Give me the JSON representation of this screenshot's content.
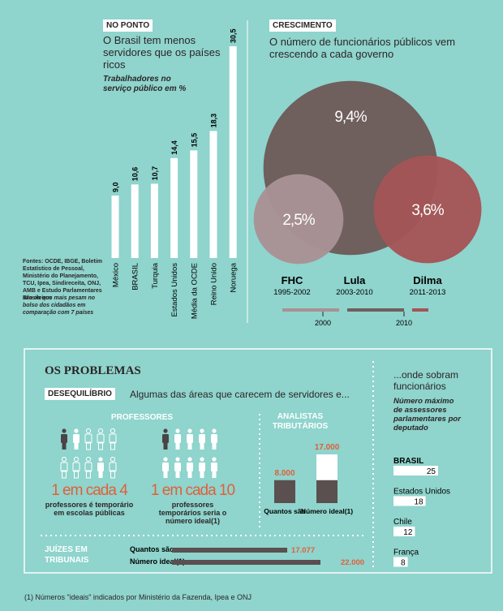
{
  "chart_data": [
    {
      "type": "bar",
      "title": "NO PONTO",
      "subtitle": "O Brasil tem menos servidores que os países ricos",
      "y_label": "Trabalhadores no serviço público em %",
      "categories": [
        "México",
        "BRASIL",
        "Turquia",
        "Estados Unidos",
        "Média da OCDE",
        "Reino Unido",
        "Noruega"
      ],
      "values": [
        9.0,
        10.6,
        10.7,
        14.4,
        15.5,
        18.3,
        30.5
      ],
      "value_labels": [
        "9,0",
        "10,6",
        "10,7",
        "14,4",
        "15,5",
        "18,3",
        "30,5"
      ],
      "color": "#ffffff",
      "source": "Fontes: OCDE, IBGE, Boletim Estatístico de Pessoal, Ministério do Planejamento, TCU, Ipea, Sindireceita, ONJ, AMB e Estudo Parlamentares Brasileiros",
      "note": "são os que mais pesam no bolso dos cidadãos em comparação com 7 países"
    },
    {
      "type": "bubble",
      "title": "CRESCIMENTO",
      "subtitle": "O número de funcionários públicos vem crescendo a cada governo",
      "categories": [
        "FHC",
        "Lula",
        "Dilma"
      ],
      "periods": [
        "1995-2002",
        "2003-2010",
        "2011-2013"
      ],
      "values": [
        2.5,
        9.4,
        3.6
      ],
      "value_labels": [
        "2,5%",
        "9,4%",
        "3,6%"
      ],
      "colors": [
        "#a89295",
        "#6f5f5d",
        "#a45556"
      ],
      "xlim": [
        1995,
        2013
      ],
      "xticks": [
        2000,
        2010
      ]
    },
    {
      "type": "bar",
      "title": "ANALISTAS TRIBUTÁRIOS",
      "categories": [
        "Quantos são",
        "Número ideal(1)"
      ],
      "values": [
        8000,
        17000
      ],
      "value_labels": [
        "8.000",
        "17.000"
      ],
      "colors": [
        "#5a504f",
        "#ffffff"
      ]
    },
    {
      "type": "hbar",
      "title": "JUÍZES EM TRIBUNAIS",
      "categories": [
        "Quantos são",
        "Número ideal(1)"
      ],
      "values": [
        17077,
        22000
      ],
      "value_labels": [
        "17.077",
        "22.000"
      ],
      "color": "#5a504f"
    },
    {
      "type": "hbar",
      "title": "...onde sobram funcionários",
      "subtitle": "Número máximo de assessores parlamentares por deputado",
      "categories": [
        "BRASIL",
        "Estados Unidos",
        "Chile",
        "França"
      ],
      "values": [
        25,
        18,
        12,
        8
      ],
      "color": "#ffffff"
    }
  ],
  "problems": {
    "title": "OS PROBLEMAS",
    "tag": "DESEQUILÍBRIO",
    "intro": "Algumas das áreas que carecem de servidores e...",
    "teachers": {
      "title": "PROFESSORES",
      "ratio_now": "1 em cada 4",
      "text_now": "professores é temporário em escolas públicas",
      "ratio_ideal": "1 em cada 10",
      "text_ideal": "professores temporários seria o número ideal(1)"
    }
  },
  "footnote": "(1) Números \"ideais\" indicados por Ministério da Fazenda, Ipea e ONJ"
}
